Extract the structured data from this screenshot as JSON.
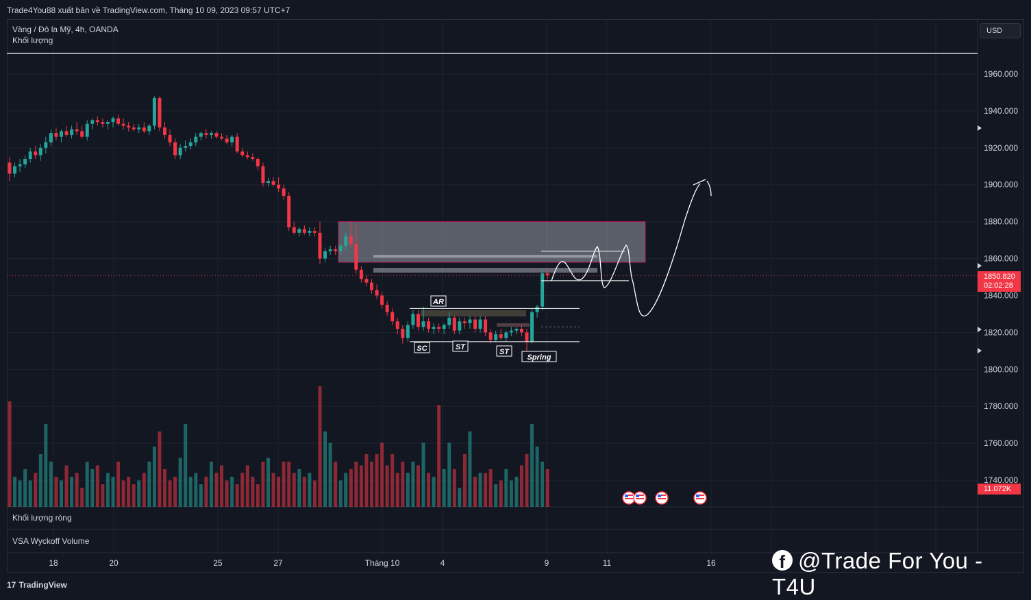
{
  "header": {
    "published": "Trade4You88 xuất bản về TradingView.com, Tháng 10 09, 2023 09:57 UTC+7"
  },
  "legend": {
    "symbol": "Vàng / Đô la Mỹ, 4h, OANDA",
    "volume_label": "Khối lượng"
  },
  "currency_button": "USD",
  "panes": {
    "net_volume": "Khối lượng ròng",
    "vsa": "VSA Wyckoff Volume"
  },
  "last_price": {
    "value": "1850.820",
    "countdown": "02:02:28"
  },
  "last_volume": "11.072K",
  "footer": {
    "brand": "TradingView"
  },
  "watermark": {
    "icon": "facebook-icon",
    "text": "@Trade For You - T4U"
  },
  "colors": {
    "up": "#26a69a",
    "down": "#f23645",
    "background": "#131722"
  },
  "chart_data": {
    "type": "candlestick",
    "symbol": "XAUUSD",
    "timeframe": "4h",
    "ylim": [
      1730,
      1970
    ],
    "y_ticks": [
      "1960.000",
      "1940.000",
      "1920.000",
      "1900.000",
      "1880.000",
      "1860.000",
      "1840.000",
      "1820.000",
      "1800.000",
      "1780.000",
      "1760.000",
      "1740.000"
    ],
    "x_ticks": [
      "18",
      "20",
      "25",
      "27",
      "Tháng 10",
      "4",
      "9",
      "11",
      "16"
    ],
    "annotations": [
      "AR",
      "SC",
      "ST",
      "ST",
      "Spring"
    ],
    "ohlc": [
      [
        1912,
        1915,
        1902,
        1906
      ],
      [
        1906,
        1912,
        1904,
        1910
      ],
      [
        1910,
        1914,
        1907,
        1911
      ],
      [
        1911,
        1916,
        1909,
        1914
      ],
      [
        1914,
        1920,
        1912,
        1918
      ],
      [
        1918,
        1921,
        1914,
        1916
      ],
      [
        1916,
        1922,
        1913,
        1920
      ],
      [
        1920,
        1926,
        1917,
        1923
      ],
      [
        1923,
        1930,
        1921,
        1928
      ],
      [
        1928,
        1931,
        1924,
        1926
      ],
      [
        1926,
        1930,
        1923,
        1929
      ],
      [
        1929,
        1932,
        1926,
        1927
      ],
      [
        1927,
        1932,
        1925,
        1930
      ],
      [
        1930,
        1934,
        1927,
        1929
      ],
      [
        1929,
        1932,
        1925,
        1926
      ],
      [
        1926,
        1935,
        1924,
        1933
      ],
      [
        1933,
        1936,
        1930,
        1935
      ],
      [
        1935,
        1937,
        1932,
        1934
      ],
      [
        1934,
        1936,
        1931,
        1933
      ],
      [
        1933,
        1935,
        1930,
        1934
      ],
      [
        1934,
        1937,
        1931,
        1936
      ],
      [
        1936,
        1938,
        1932,
        1933
      ],
      [
        1933,
        1936,
        1930,
        1932
      ],
      [
        1932,
        1934,
        1929,
        1931
      ],
      [
        1931,
        1933,
        1929,
        1930
      ],
      [
        1930,
        1933,
        1928,
        1931
      ],
      [
        1931,
        1934,
        1928,
        1929
      ],
      [
        1929,
        1933,
        1927,
        1932
      ],
      [
        1932,
        1948,
        1930,
        1947
      ],
      [
        1947,
        1948,
        1929,
        1931
      ],
      [
        1931,
        1934,
        1925,
        1927
      ],
      [
        1927,
        1930,
        1921,
        1923
      ],
      [
        1923,
        1925,
        1914,
        1916
      ],
      [
        1916,
        1922,
        1914,
        1920
      ],
      [
        1920,
        1924,
        1918,
        1921
      ],
      [
        1921,
        1925,
        1919,
        1923
      ],
      [
        1923,
        1928,
        1921,
        1926
      ],
      [
        1926,
        1929,
        1924,
        1928
      ],
      [
        1928,
        1930,
        1925,
        1927
      ],
      [
        1927,
        1929,
        1925,
        1928
      ],
      [
        1928,
        1929,
        1925,
        1926
      ],
      [
        1926,
        1928,
        1924,
        1925
      ],
      [
        1925,
        1927,
        1922,
        1923
      ],
      [
        1923,
        1927,
        1921,
        1926
      ],
      [
        1926,
        1928,
        1917,
        1918
      ],
      [
        1918,
        1920,
        1915,
        1916
      ],
      [
        1916,
        1918,
        1914,
        1915
      ],
      [
        1915,
        1917,
        1913,
        1914
      ],
      [
        1914,
        1915,
        1908,
        1910
      ],
      [
        1910,
        1912,
        1899,
        1901
      ],
      [
        1901,
        1904,
        1899,
        1902
      ],
      [
        1902,
        1904,
        1899,
        1900
      ],
      [
        1900,
        1904,
        1896,
        1898
      ],
      [
        1898,
        1900,
        1892,
        1894
      ],
      [
        1894,
        1896,
        1875,
        1877
      ],
      [
        1877,
        1880,
        1873,
        1874
      ],
      [
        1874,
        1877,
        1872,
        1876
      ],
      [
        1876,
        1878,
        1873,
        1874
      ],
      [
        1874,
        1877,
        1872,
        1875
      ],
      [
        1875,
        1877,
        1872,
        1874
      ],
      [
        1874,
        1880,
        1857,
        1860
      ],
      [
        1860,
        1866,
        1858,
        1864
      ],
      [
        1864,
        1867,
        1862,
        1865
      ],
      [
        1865,
        1867,
        1862,
        1864
      ],
      [
        1864,
        1868,
        1862,
        1867
      ],
      [
        1867,
        1874,
        1865,
        1872
      ],
      [
        1872,
        1880,
        1866,
        1868
      ],
      [
        1868,
        1879,
        1852,
        1854
      ],
      [
        1854,
        1856,
        1847,
        1849
      ],
      [
        1849,
        1851,
        1845,
        1847
      ],
      [
        1847,
        1849,
        1841,
        1843
      ],
      [
        1843,
        1846,
        1838,
        1840
      ],
      [
        1840,
        1842,
        1833,
        1835
      ],
      [
        1835,
        1837,
        1829,
        1831
      ],
      [
        1831,
        1833,
        1824,
        1826
      ],
      [
        1826,
        1828,
        1819,
        1822
      ],
      [
        1822,
        1824,
        1814,
        1817
      ],
      [
        1817,
        1826,
        1815,
        1824
      ],
      [
        1824,
        1832,
        1822,
        1830
      ],
      [
        1830,
        1832,
        1821,
        1823
      ],
      [
        1823,
        1834,
        1821,
        1826
      ],
      [
        1826,
        1828,
        1820,
        1822
      ],
      [
        1822,
        1825,
        1819,
        1823
      ],
      [
        1823,
        1825,
        1820,
        1822
      ],
      [
        1822,
        1825,
        1819,
        1824
      ],
      [
        1824,
        1831,
        1822,
        1828
      ],
      [
        1828,
        1829,
        1819,
        1821
      ],
      [
        1821,
        1828,
        1819,
        1826
      ],
      [
        1826,
        1828,
        1822,
        1825
      ],
      [
        1825,
        1829,
        1822,
        1827
      ],
      [
        1827,
        1829,
        1820,
        1822
      ],
      [
        1822,
        1829,
        1820,
        1827
      ],
      [
        1827,
        1829,
        1818,
        1820
      ],
      [
        1820,
        1822,
        1814,
        1816
      ],
      [
        1816,
        1821,
        1815,
        1819
      ],
      [
        1819,
        1822,
        1816,
        1817
      ],
      [
        1817,
        1821,
        1815,
        1820
      ],
      [
        1820,
        1823,
        1818,
        1821
      ],
      [
        1821,
        1823,
        1819,
        1822
      ],
      [
        1822,
        1824,
        1818,
        1820
      ],
      [
        1820,
        1822,
        1810,
        1815
      ],
      [
        1815,
        1833,
        1814,
        1831
      ],
      [
        1831,
        1835,
        1828,
        1834
      ],
      [
        1834,
        1855,
        1832,
        1852
      ],
      [
        1852,
        1854,
        1849,
        1851
      ]
    ],
    "volume_series": {
      "name": "Khối lượng",
      "values": [
        140,
        40,
        35,
        50,
        35,
        45,
        70,
        110,
        60,
        40,
        35,
        55,
        40,
        45,
        25,
        60,
        50,
        55,
        30,
        45,
        40,
        60,
        35,
        40,
        30,
        35,
        45,
        60,
        80,
        100,
        50,
        35,
        40,
        65,
        110,
        40,
        45,
        30,
        40,
        60,
        45,
        55,
        35,
        40,
        30,
        45,
        55,
        40,
        30,
        60,
        65,
        45,
        40,
        60,
        60,
        45,
        50,
        40,
        45,
        35,
        160,
        100,
        85,
        60,
        35,
        45,
        50,
        60,
        55,
        70,
        60,
        70,
        85,
        55,
        70,
        45,
        60,
        45,
        60,
        55,
        85,
        45,
        40,
        135,
        50,
        85,
        50,
        25,
        70,
        100,
        40,
        45,
        45,
        50,
        30,
        35,
        50,
        35,
        40,
        55,
        70,
        110,
        80,
        60,
        50
      ]
    }
  }
}
